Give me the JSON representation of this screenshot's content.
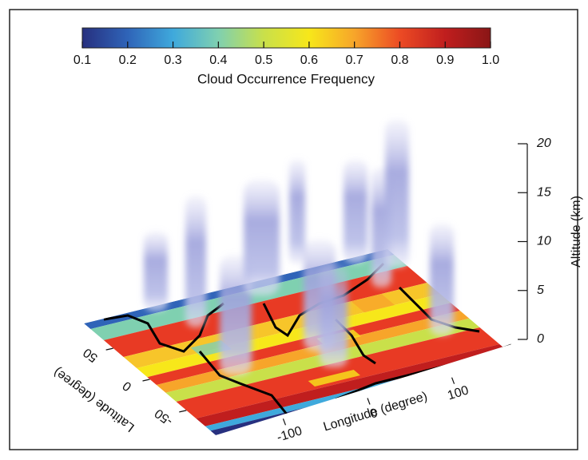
{
  "chart_data": {
    "type": "3d-volume",
    "colorbar": {
      "label": "Cloud Occurrence Frequency",
      "lim": [
        0.1,
        1.0
      ],
      "ticks": [
        0.1,
        0.2,
        0.3,
        0.4,
        0.5,
        0.6,
        0.7,
        0.8,
        0.9,
        {
          "value": 1.0,
          "label": "1.0"
        }
      ],
      "colormap": [
        "#27307f",
        "#2f64b8",
        "#3fa9dc",
        "#7fd0b0",
        "#c9e04a",
        "#f7e71a",
        "#f7a52a",
        "#ec4b24",
        "#c01e1e",
        "#8a1616"
      ]
    },
    "zlabel": "Altitude (km)",
    "zlim": [
      0,
      20
    ],
    "zticks": [
      0,
      5,
      10,
      15,
      20
    ],
    "xlabel": "Longitude (degree)",
    "xlim": [
      -180,
      180
    ],
    "xticks": [
      -100,
      0,
      100
    ],
    "ylabel": "Latitude (degree)",
    "ylim": [
      -90,
      90
    ],
    "yticks": [
      -50,
      0,
      50
    ]
  }
}
